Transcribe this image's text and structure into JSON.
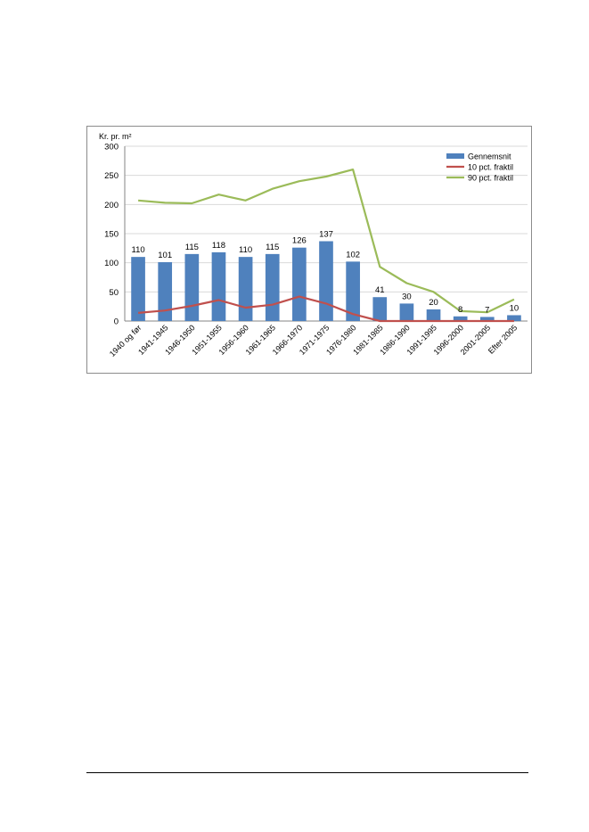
{
  "chart_data": {
    "type": "bar",
    "ylabel": "Kr. pr. m²",
    "ylim": [
      0,
      300
    ],
    "yticks": [
      0,
      50,
      100,
      150,
      200,
      250,
      300
    ],
    "grid": true,
    "legend_position": "top-right",
    "categories": [
      "1940 og før",
      "1941-1945",
      "1946-1950",
      "1951-1955",
      "1956-1960",
      "1961-1965",
      "1966-1970",
      "1971-1975",
      "1976-1980",
      "1981-1985",
      "1986-1990",
      "1991-1995",
      "1996-2000",
      "2001-2005",
      "Efter 2005"
    ],
    "series": [
      {
        "name": "Gennemsnit",
        "kind": "bar",
        "color": "#4f81bd",
        "values": [
          110,
          101,
          115,
          118,
          110,
          115,
          126,
          137,
          102,
          41,
          30,
          20,
          8,
          7,
          10
        ],
        "data_labels": [
          "110",
          "101",
          "115",
          "118",
          "110",
          "115",
          "126",
          "137",
          "102",
          "41",
          "30",
          "20",
          "8",
          "7",
          "10"
        ]
      },
      {
        "name": "10 pct. fraktil",
        "kind": "line",
        "color": "#c0504d",
        "values": [
          14,
          18,
          26,
          36,
          23,
          28,
          42,
          30,
          12,
          0,
          0,
          0,
          0,
          0,
          0
        ]
      },
      {
        "name": "90 pct. fraktil",
        "kind": "line",
        "color": "#9bbb59",
        "values": [
          207,
          203,
          202,
          217,
          207,
          227,
          240,
          248,
          260,
          93,
          65,
          50,
          17,
          15,
          37
        ]
      }
    ]
  }
}
